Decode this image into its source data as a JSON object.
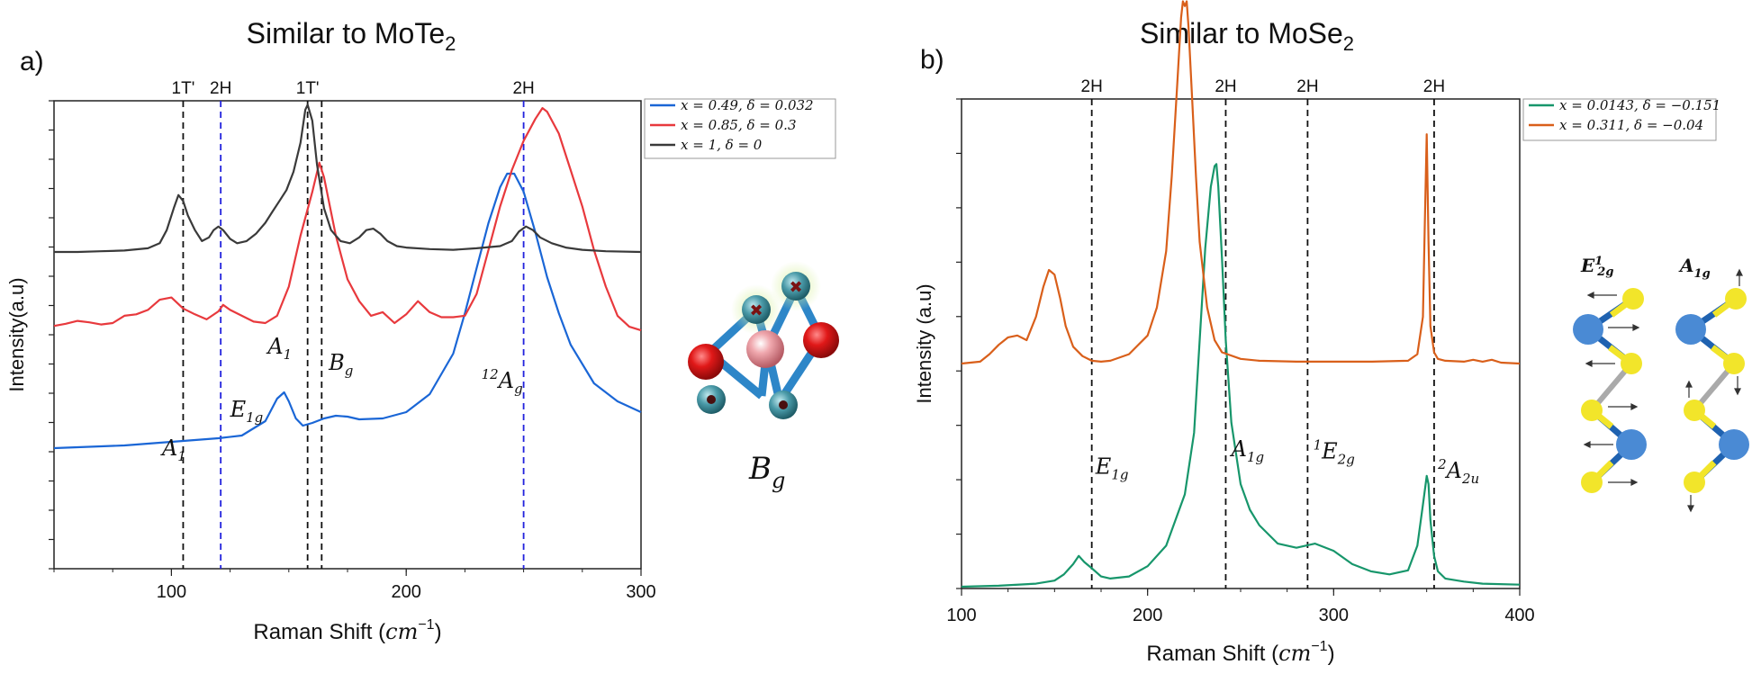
{
  "chart_data": [
    {
      "panel": "a)",
      "type": "line",
      "title": "Similar to MoTe",
      "title_sub": "2",
      "xlabel": "Raman Shift (",
      "xlabel_unit": "cm",
      "xlabel_exp": "−1",
      "xlabel_close": ")",
      "ylabel": "Intensity(a.u)",
      "xlim": [
        50,
        300
      ],
      "xticks": [
        "100",
        "200",
        "300"
      ],
      "xtick_values": [
        100,
        200,
        300
      ],
      "series": [
        {
          "name": "x = 0.49, δ = 0.032",
          "color": "#1a66d6",
          "x": [
            50,
            60,
            70,
            80,
            90,
            100,
            110,
            120,
            130,
            140,
            145,
            148,
            150,
            153,
            156,
            160,
            165,
            170,
            175,
            180,
            190,
            200,
            210,
            220,
            225,
            230,
            235,
            240,
            243,
            246,
            250,
            255,
            260,
            265,
            270,
            280,
            290,
            300
          ],
          "y": [
            1.0,
            1.01,
            1.02,
            1.03,
            1.05,
            1.07,
            1.09,
            1.11,
            1.14,
            1.3,
            1.55,
            1.62,
            1.52,
            1.33,
            1.25,
            1.28,
            1.33,
            1.36,
            1.35,
            1.32,
            1.33,
            1.4,
            1.6,
            2.05,
            2.5,
            3.0,
            3.5,
            3.9,
            4.05,
            4.05,
            3.85,
            3.4,
            2.9,
            2.5,
            2.15,
            1.72,
            1.52,
            1.4
          ]
        },
        {
          "name": "x = 0.85, δ = 0.3",
          "color": "#e8393d",
          "x": [
            50,
            55,
            60,
            65,
            70,
            75,
            80,
            85,
            90,
            95,
            100,
            105,
            110,
            115,
            120,
            122,
            125,
            130,
            135,
            140,
            145,
            150,
            155,
            160,
            163,
            165,
            170,
            175,
            180,
            185,
            190,
            195,
            200,
            205,
            210,
            215,
            220,
            225,
            230,
            235,
            240,
            245,
            250,
            255,
            258,
            260,
            265,
            270,
            275,
            280,
            285,
            290,
            295,
            300
          ],
          "y": [
            0.96,
            0.99,
            1.03,
            1.01,
            0.98,
            1.0,
            1.1,
            1.12,
            1.18,
            1.32,
            1.35,
            1.2,
            1.12,
            1.05,
            1.16,
            1.25,
            1.18,
            1.1,
            1.02,
            1.0,
            1.1,
            1.5,
            2.2,
            2.8,
            3.2,
            3.0,
            2.2,
            1.6,
            1.3,
            1.1,
            1.15,
            1.0,
            1.12,
            1.3,
            1.15,
            1.08,
            1.08,
            1.1,
            1.4,
            2.0,
            2.6,
            3.1,
            3.5,
            3.8,
            3.95,
            3.9,
            3.6,
            3.1,
            2.6,
            2.0,
            1.5,
            1.1,
            0.95,
            0.9
          ]
        },
        {
          "name": "x = 1, δ = 0",
          "color": "#3a3a3a",
          "x": [
            50,
            60,
            70,
            80,
            90,
            95,
            98,
            101,
            103,
            105,
            107,
            110,
            113,
            116,
            118,
            120,
            122,
            125,
            128,
            132,
            136,
            140,
            143,
            146,
            149,
            152,
            155,
            157,
            158,
            160,
            162,
            165,
            168,
            172,
            176,
            180,
            183,
            186,
            189,
            192,
            196,
            200,
            210,
            220,
            230,
            240,
            245,
            248,
            251,
            254,
            257,
            262,
            268,
            275,
            285,
            300
          ],
          "y": [
            0.0,
            0.0,
            0.01,
            0.02,
            0.05,
            0.12,
            0.3,
            0.6,
            0.78,
            0.7,
            0.5,
            0.3,
            0.15,
            0.2,
            0.3,
            0.35,
            0.3,
            0.18,
            0.12,
            0.15,
            0.25,
            0.4,
            0.55,
            0.7,
            0.85,
            1.1,
            1.5,
            1.95,
            2.02,
            1.8,
            1.2,
            0.6,
            0.3,
            0.15,
            0.12,
            0.2,
            0.3,
            0.32,
            0.25,
            0.15,
            0.08,
            0.06,
            0.04,
            0.03,
            0.05,
            0.08,
            0.15,
            0.28,
            0.35,
            0.3,
            0.2,
            0.12,
            0.06,
            0.03,
            0.01,
            0.0
          ]
        }
      ],
      "vlines": [
        {
          "x": 105,
          "label": "1T'",
          "color": "#111111"
        },
        {
          "x": 121,
          "label": "2H",
          "color": "#2222dd"
        },
        {
          "x": 158,
          "label": "1T'",
          "color": "#111111"
        },
        {
          "x": 164,
          "label": "",
          "color": "#111111"
        },
        {
          "x": 250,
          "label": "2H",
          "color": "#2222dd"
        }
      ],
      "annotations": [
        {
          "text": "A",
          "sub": "1",
          "sup": "",
          "x": 96,
          "y": 0.92
        },
        {
          "text": "E",
          "sub": "1g",
          "sup": "",
          "x": 125,
          "y": 1.35
        },
        {
          "text": "A",
          "sub": "1",
          "sup": "",
          "x": 141,
          "y": 2.05
        },
        {
          "text": "B",
          "sub": "g",
          "sup": "",
          "x": 167,
          "y": 1.87
        },
        {
          "text": "A",
          "sub": "g",
          "sup": "12",
          "x": 232,
          "y": 1.67
        }
      ],
      "inset_label": "B",
      "inset_label_sub": "g"
    },
    {
      "panel": "b)",
      "type": "line",
      "title": "Similar to MoSe",
      "title_sub": "2",
      "xlabel": "Raman Shift (",
      "xlabel_unit": "cm",
      "xlabel_exp": "−1",
      "xlabel_close": ")",
      "ylabel": "Intensity (a.u)",
      "xlim": [
        100,
        400
      ],
      "xticks": [
        "100",
        "200",
        "300",
        "400"
      ],
      "xtick_values": [
        100,
        200,
        300,
        400
      ],
      "series": [
        {
          "name": "x = 0.0143, δ = −0.151",
          "color": "#17966b",
          "x": [
            100,
            120,
            140,
            150,
            155,
            160,
            163,
            166,
            170,
            175,
            180,
            190,
            200,
            210,
            220,
            225,
            228,
            231,
            234,
            236,
            237,
            238,
            240,
            242,
            245,
            250,
            255,
            260,
            270,
            280,
            290,
            300,
            310,
            320,
            330,
            340,
            345,
            348,
            350,
            351,
            352,
            354,
            356,
            360,
            370,
            380,
            400
          ],
          "y": [
            0.0,
            0.01,
            0.03,
            0.06,
            0.12,
            0.22,
            0.3,
            0.24,
            0.18,
            0.1,
            0.08,
            0.1,
            0.2,
            0.4,
            0.9,
            1.5,
            2.4,
            3.3,
            3.9,
            4.1,
            4.12,
            3.9,
            3.2,
            2.4,
            1.6,
            1.0,
            0.75,
            0.6,
            0.42,
            0.38,
            0.42,
            0.35,
            0.22,
            0.15,
            0.12,
            0.16,
            0.4,
            0.8,
            1.08,
            1.0,
            0.65,
            0.3,
            0.15,
            0.08,
            0.05,
            0.03,
            0.02
          ]
        },
        {
          "name": "x = 0.311, δ = −0.04",
          "color": "#d95f1a",
          "x": [
            100,
            110,
            115,
            120,
            125,
            130,
            135,
            140,
            144,
            147,
            150,
            153,
            156,
            160,
            165,
            170,
            175,
            180,
            190,
            200,
            205,
            210,
            213,
            216,
            218,
            219,
            220,
            221,
            222,
            224,
            226,
            228,
            232,
            236,
            240,
            250,
            260,
            280,
            300,
            320,
            340,
            345,
            348,
            349,
            350,
            351,
            352,
            354,
            356,
            360,
            370,
            375,
            380,
            385,
            390,
            400
          ],
          "y": [
            0.0,
            0.02,
            0.1,
            0.2,
            0.28,
            0.3,
            0.25,
            0.5,
            0.82,
            1.0,
            0.95,
            0.7,
            0.4,
            0.18,
            0.08,
            0.03,
            0.02,
            0.03,
            0.1,
            0.3,
            0.6,
            1.2,
            2.0,
            3.0,
            3.7,
            3.87,
            3.82,
            3.87,
            3.6,
            2.8,
            2.0,
            1.3,
            0.6,
            0.25,
            0.12,
            0.05,
            0.03,
            0.02,
            0.02,
            0.02,
            0.03,
            0.1,
            0.5,
            1.5,
            2.45,
            1.3,
            0.4,
            0.12,
            0.05,
            0.03,
            0.02,
            0.04,
            0.02,
            0.04,
            0.01,
            0.0
          ]
        }
      ],
      "vlines": [
        {
          "x": 170,
          "label": "2H",
          "color": "#111111"
        },
        {
          "x": 242,
          "label": "2H",
          "color": "#111111"
        },
        {
          "x": 286,
          "label": "2H",
          "color": "#111111"
        },
        {
          "x": 354,
          "label": "2H",
          "color": "#111111"
        }
      ],
      "annotations": [
        {
          "text": "E",
          "sub": "1g",
          "sup": "",
          "x": 172,
          "y": 1.1
        },
        {
          "text": "A",
          "sub": "1g",
          "sup": "",
          "x": 245,
          "y": 1.27
        },
        {
          "text": "E",
          "sub": "2g",
          "sup": "1",
          "x": 289,
          "y": 1.25
        },
        {
          "text": "A",
          "sub": "2u",
          "sup": "2",
          "x": 356,
          "y": 1.06
        }
      ],
      "mode_labels": [
        {
          "text": "E",
          "sub": "2g",
          "sup": "1"
        },
        {
          "text": "A",
          "sub": "1g",
          "sup": ""
        }
      ]
    }
  ],
  "colors": {
    "atom_red": "#e01818",
    "atom_pink": "#e89aa0",
    "atom_teal": "#4a9aa8",
    "bond_blue": "#2d86c8",
    "mode_blue": "#4a8ad4",
    "mode_yellow": "#f2e52a"
  }
}
